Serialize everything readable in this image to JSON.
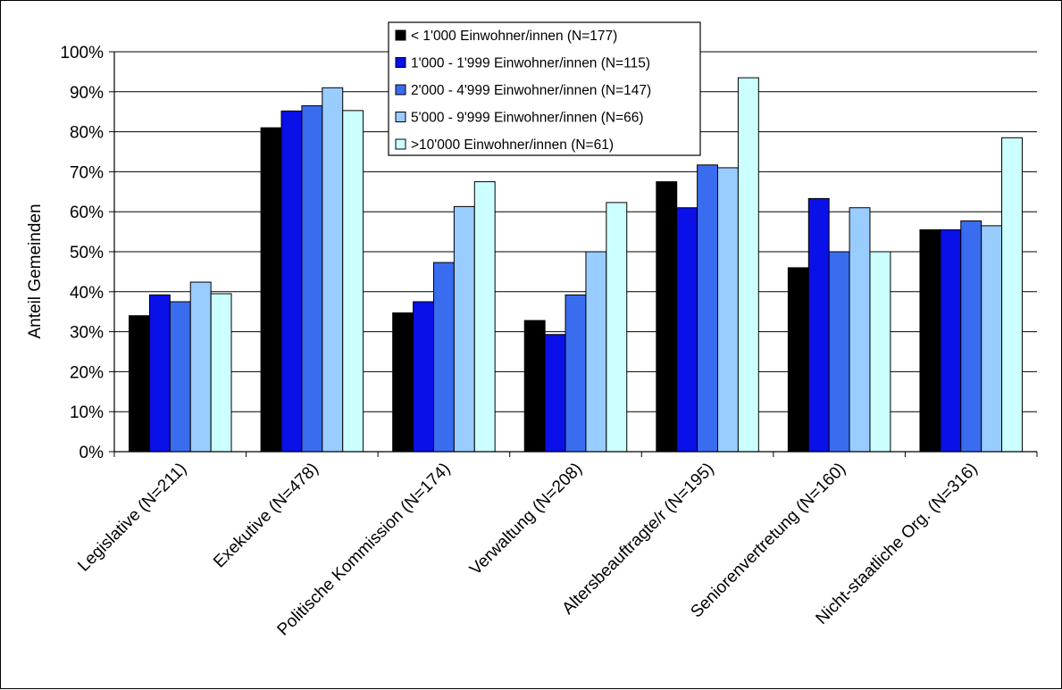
{
  "chart_data": {
    "type": "bar",
    "title": "",
    "xlabel": "",
    "ylabel": "Anteil Gemeinden",
    "ylim": [
      0,
      100
    ],
    "y_ticks": [
      "0%",
      "10%",
      "20%",
      "30%",
      "40%",
      "50%",
      "60%",
      "70%",
      "80%",
      "90%",
      "100%"
    ],
    "grid": true,
    "legend_position": "top-center",
    "categories": [
      "Legislative (N=211)",
      "Exekutive (N=478)",
      "Politische Kommission (N=174)",
      "Verwaltung (N=208)",
      "Altersbeauftragte/r  (N=195)",
      "Seniorenvertretung (N=160)",
      "Nicht-staatliche Org. (N=316)"
    ],
    "series": [
      {
        "name": "< 1'000 Einwohner/innen (N=177)",
        "color": "#000000",
        "values": [
          34,
          81,
          34.7,
          32.8,
          67.5,
          46,
          55.5
        ]
      },
      {
        "name": "1'000 - 1'999 Einwohner/innen (N=115)",
        "color": "#0a10e8",
        "values": [
          39.2,
          85.2,
          37.5,
          29.3,
          61,
          63.3,
          55.5
        ]
      },
      {
        "name": "2'000 - 4'999 Einwohner/innen (N=147)",
        "color": "#3a6cf0",
        "values": [
          37.5,
          86.5,
          47.3,
          39.2,
          71.7,
          50,
          57.7
        ]
      },
      {
        "name": "5'000 - 9'999 Einwohner/innen (N=66)",
        "color": "#99ccff",
        "values": [
          42.4,
          91,
          61.3,
          50,
          71,
          61,
          56.5
        ]
      },
      {
        "name": ">10'000 Einwohner/innen (N=61)",
        "color": "#ccffff",
        "values": [
          39.5,
          85.3,
          67.5,
          62.3,
          93.5,
          50,
          78.5
        ]
      }
    ]
  }
}
